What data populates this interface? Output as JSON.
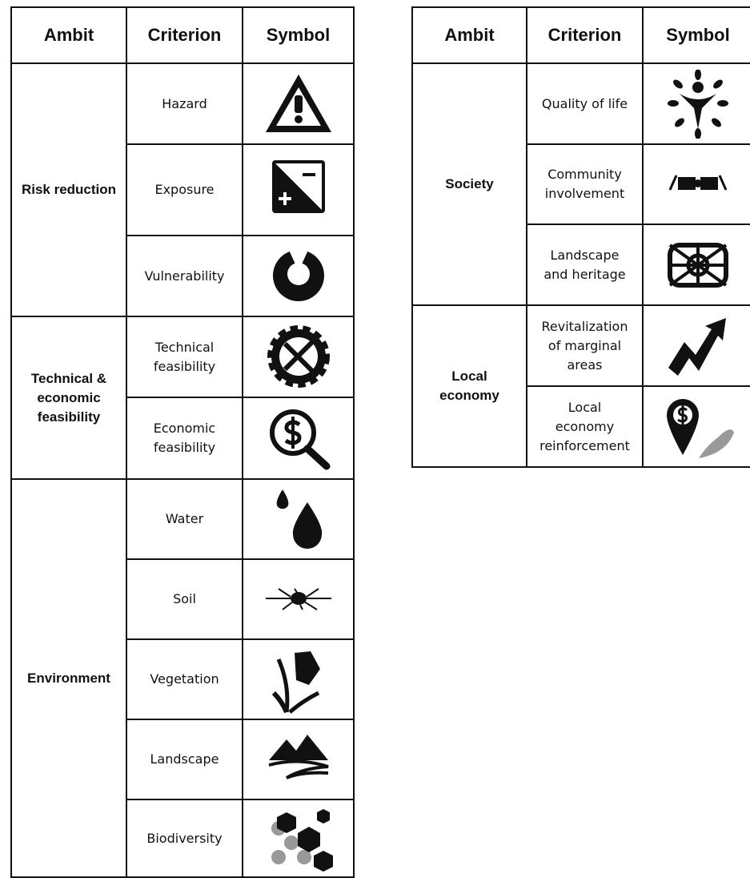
{
  "left_table": {
    "headers": [
      "Ambit",
      "Criterion",
      "Symbol"
    ],
    "groups": [
      {
        "ambit": "Risk reduction",
        "criteria": [
          "Hazard",
          "Exposure",
          "Vulnerability"
        ]
      },
      {
        "ambit": "Technical & economic feasibility",
        "criteria": [
          "Technical feasibility",
          "Economic feasibility"
        ]
      },
      {
        "ambit": "Environment",
        "criteria": [
          "Water",
          "Soil",
          "Vegetation",
          "Landscape",
          "Biodiversity"
        ]
      }
    ]
  },
  "right_table": {
    "headers": [
      "Ambit",
      "Criterion",
      "Symbol"
    ],
    "groups": [
      {
        "ambit": "Society",
        "criteria": [
          "Quality of life",
          "Community involvement",
          "Landscape and heritage"
        ]
      },
      {
        "ambit": "Local economy",
        "criteria": [
          "Revitalization of marginal areas",
          "Local economy reinforcement"
        ]
      }
    ]
  }
}
